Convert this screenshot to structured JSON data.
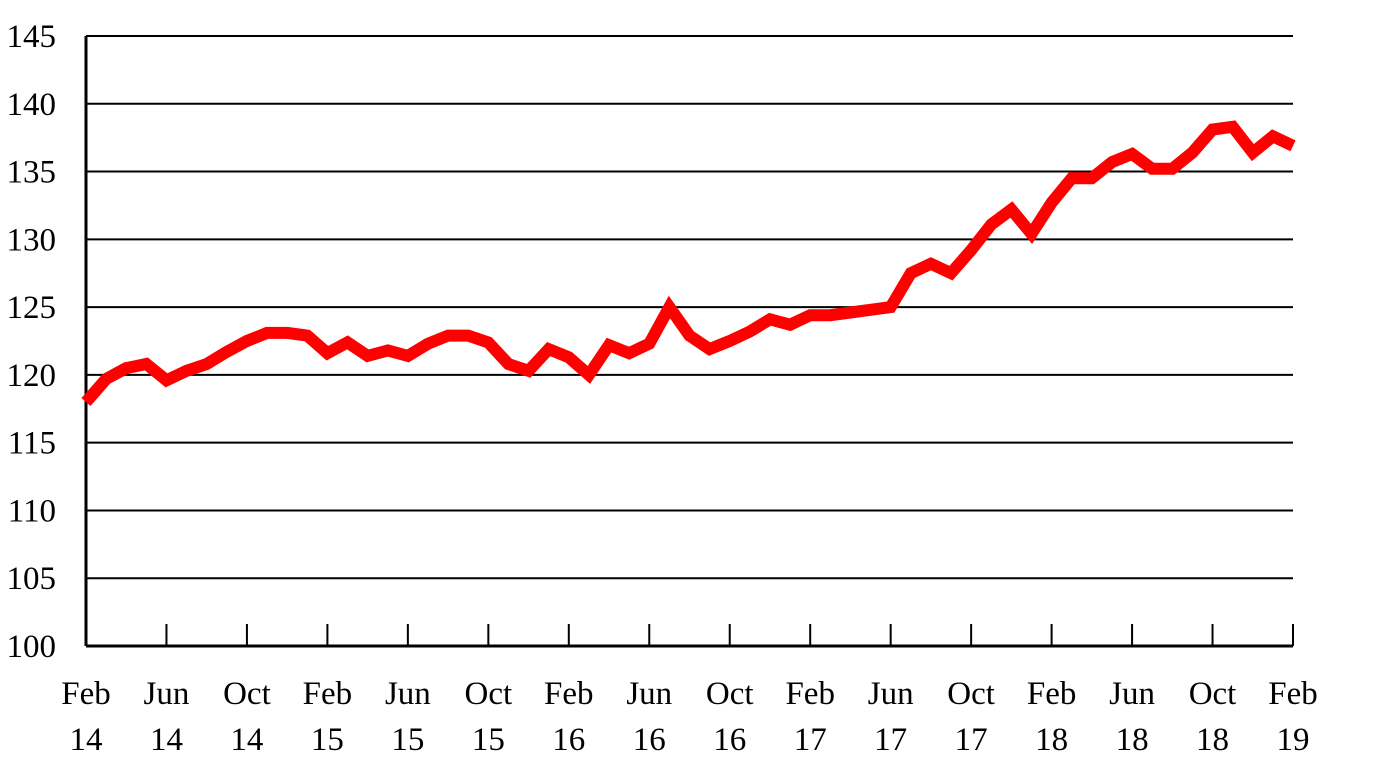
{
  "chart_data": {
    "type": "line",
    "title": "",
    "xlabel": "",
    "ylabel": "",
    "ylim": [
      100,
      145
    ],
    "yticks": [
      "100",
      "105",
      "110",
      "115",
      "120",
      "125",
      "130",
      "135",
      "140",
      "145"
    ],
    "grid": true,
    "legend": "none",
    "x_ticks": [
      {
        "month": "Feb",
        "year": "14"
      },
      {
        "month": "Jun",
        "year": "14"
      },
      {
        "month": "Oct",
        "year": "14"
      },
      {
        "month": "Feb",
        "year": "15"
      },
      {
        "month": "Jun",
        "year": "15"
      },
      {
        "month": "Oct",
        "year": "15"
      },
      {
        "month": "Feb",
        "year": "16"
      },
      {
        "month": "Jun",
        "year": "16"
      },
      {
        "month": "Oct",
        "year": "16"
      },
      {
        "month": "Feb",
        "year": "17"
      },
      {
        "month": "Jun",
        "year": "17"
      },
      {
        "month": "Oct",
        "year": "17"
      },
      {
        "month": "Feb",
        "year": "18"
      },
      {
        "month": "Jun",
        "year": "18"
      },
      {
        "month": "Oct",
        "year": "18"
      },
      {
        "month": "Feb",
        "year": "19"
      }
    ],
    "x": [
      "Feb 14",
      "Mar 14",
      "Apr 14",
      "May 14",
      "Jun 14",
      "Jul 14",
      "Aug 14",
      "Sep 14",
      "Oct 14",
      "Nov 14",
      "Dec 14",
      "Jan 15",
      "Feb 15",
      "Mar 15",
      "Apr 15",
      "May 15",
      "Jun 15",
      "Jul 15",
      "Aug 15",
      "Sep 15",
      "Oct 15",
      "Nov 15",
      "Dec 15",
      "Jan 16",
      "Feb 16",
      "Mar 16",
      "Apr 16",
      "May 16",
      "Jun 16",
      "Jul 16",
      "Aug 16",
      "Sep 16",
      "Oct 16",
      "Nov 16",
      "Dec 16",
      "Jan 17",
      "Feb 17",
      "Mar 17",
      "Apr 17",
      "May 17",
      "Jun 17",
      "Jul 17",
      "Aug 17",
      "Sep 17",
      "Oct 17",
      "Nov 17",
      "Dec 17",
      "Jan 18",
      "Feb 18",
      "Mar 18",
      "Apr 18",
      "May 18",
      "Jun 18",
      "Jul 18",
      "Aug 18",
      "Sep 18",
      "Oct 18",
      "Nov 18",
      "Dec 18",
      "Jan 19",
      "Feb 19"
    ],
    "series": [
      {
        "color": "#ff0000",
        "values": [
          118.0,
          119.7,
          120.5,
          120.8,
          119.6,
          120.3,
          120.8,
          121.7,
          122.5,
          123.1,
          123.1,
          122.9,
          121.6,
          122.4,
          121.4,
          121.8,
          121.4,
          122.3,
          122.9,
          122.9,
          122.4,
          120.8,
          120.3,
          121.9,
          121.3,
          120.0,
          122.2,
          121.6,
          122.3,
          125.0,
          122.9,
          121.9,
          122.5,
          123.2,
          124.1,
          123.7,
          124.4,
          124.4,
          124.6,
          124.8,
          125.0,
          127.5,
          128.2,
          127.5,
          129.2,
          131.1,
          132.2,
          130.4,
          132.7,
          134.5,
          134.5,
          135.7,
          136.3,
          135.2,
          135.2,
          136.4,
          138.1,
          138.3,
          136.4,
          137.6,
          136.9
        ]
      }
    ]
  }
}
